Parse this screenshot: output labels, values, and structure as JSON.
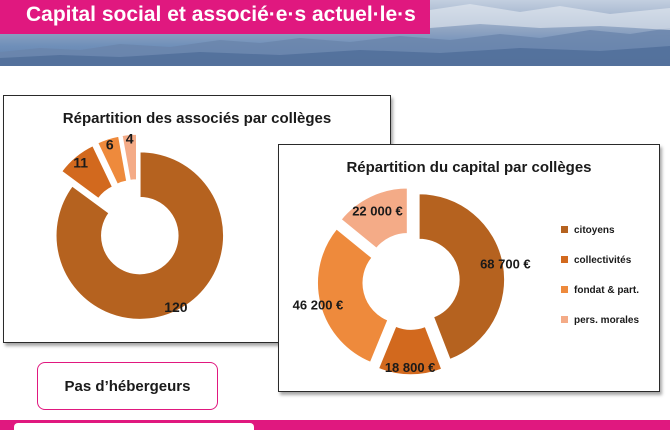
{
  "page": {
    "title": "Capital social et associé·e·s actuel·le·s",
    "note": "Pas d’hébergeurs"
  },
  "colors": {
    "brand_pink": "#e0187f",
    "citoyens": "#b5621f",
    "collectivites": "#d2691e",
    "fondat": "#ee8a3c",
    "pers_morales": "#f4ab87"
  },
  "chart_data": [
    {
      "type": "pie",
      "style": "exploded-donut",
      "title": "Répartition des associés par collèges",
      "slices": [
        {
          "value": 120,
          "label": "120",
          "color": "#b5621f"
        },
        {
          "value": 11,
          "label": "11",
          "color": "#d2691e"
        },
        {
          "value": 6,
          "label": "6",
          "color": "#ee8a3c"
        },
        {
          "value": 4,
          "label": "4",
          "color": "#f4ab87"
        }
      ]
    },
    {
      "type": "pie",
      "style": "exploded-donut",
      "title": "Répartition du capital par collèges",
      "legend_position": "right",
      "slices": [
        {
          "name": "citoyens",
          "value": 68700,
          "label": "68 700 €",
          "color": "#b5621f"
        },
        {
          "name": "collectivités",
          "value": 18800,
          "label": "18 800 €",
          "color": "#d2691e"
        },
        {
          "name": "fondat & part.",
          "value": 46200,
          "label": "46 200 €",
          "color": "#ee8a3c"
        },
        {
          "name": "pers. morales",
          "value": 22000,
          "label": "22 000 €",
          "color": "#f4ab87"
        }
      ]
    }
  ]
}
